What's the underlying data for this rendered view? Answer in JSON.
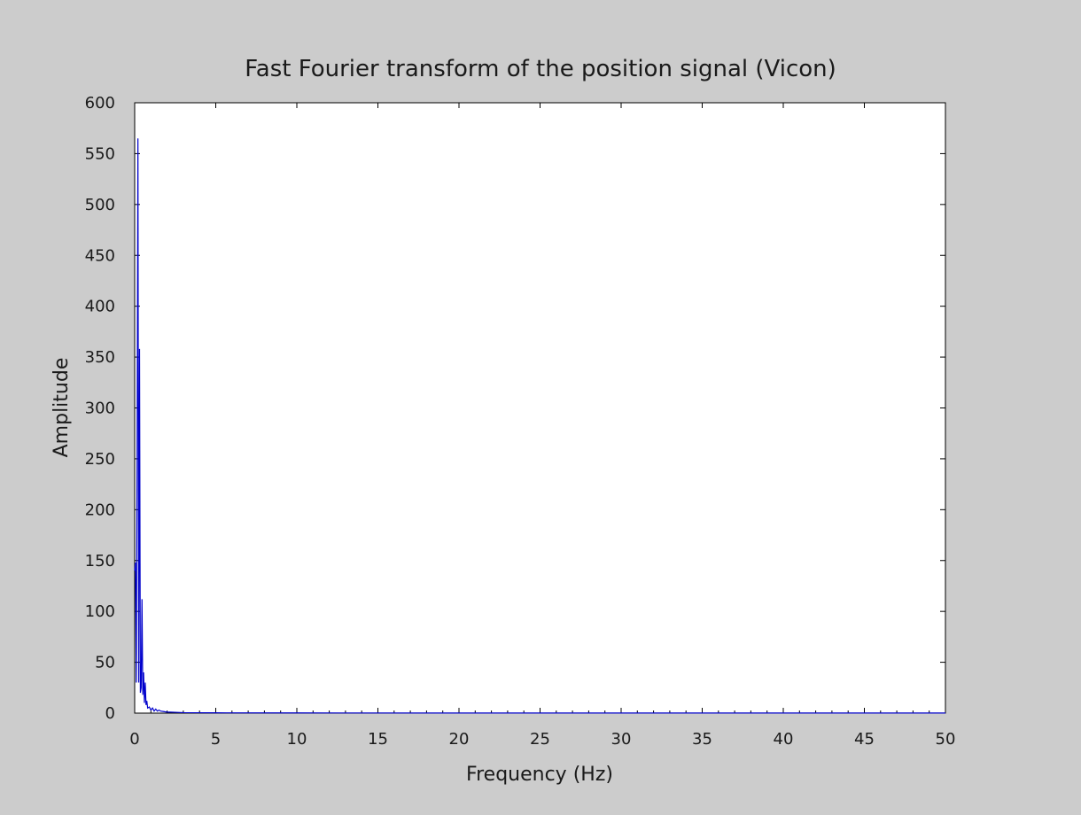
{
  "chart_data": {
    "type": "line",
    "title": "Fast Fourier transform of the position signal (Vicon)",
    "xlabel": "Frequency (Hz)",
    "ylabel": "Amplitude",
    "xlim": [
      0,
      50
    ],
    "ylim": [
      0,
      600
    ],
    "xticks": [
      "0",
      "5",
      "10",
      "15",
      "20",
      "25",
      "30",
      "35",
      "40",
      "45",
      "50"
    ],
    "yticks": [
      "0",
      "50",
      "100",
      "150",
      "200",
      "250",
      "300",
      "350",
      "400",
      "450",
      "500",
      "550",
      "600"
    ],
    "grid": false,
    "series": [
      {
        "color": "#0000cc",
        "x": [
          0,
          0.05,
          0.1,
          0.15,
          0.2,
          0.25,
          0.3,
          0.35,
          0.4,
          0.45,
          0.5,
          0.55,
          0.6,
          0.65,
          0.7,
          0.75,
          0.8,
          0.9,
          1.0,
          1.1,
          1.2,
          1.3,
          1.4,
          1.5,
          1.6,
          1.8,
          2.0,
          2.2,
          2.5,
          3.0,
          4.0,
          5.0,
          10.0,
          20.0,
          30.0,
          40.0,
          50.0
        ],
        "y": [
          140,
          148,
          30,
          252,
          565,
          30,
          358,
          20,
          25,
          112,
          18,
          40,
          10,
          30,
          8,
          12,
          5,
          6,
          3,
          5,
          2,
          4,
          2,
          3,
          2,
          1.5,
          1,
          1,
          0.8,
          0.5,
          0.4,
          0.3,
          0.2,
          0.1,
          0.1,
          0.1,
          0.1
        ]
      }
    ]
  }
}
